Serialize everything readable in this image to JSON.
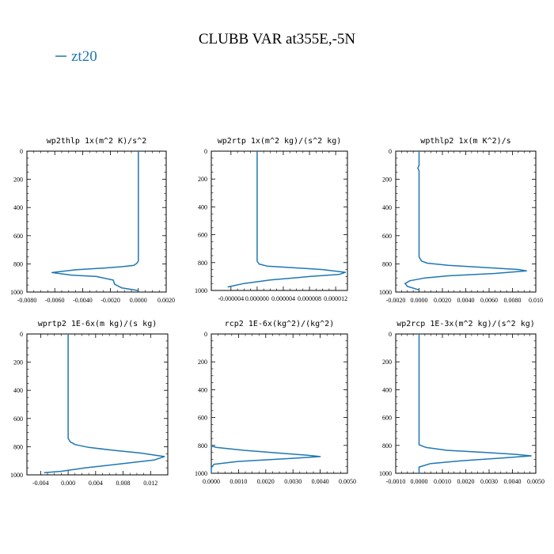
{
  "figure": {
    "title": "CLUBB VAR at355E,-5N",
    "legend": [
      {
        "name": "zt20",
        "color": "#1f77b4"
      }
    ]
  },
  "chart_data": [
    {
      "type": "line",
      "title": "wp2thlp  1x(m^2 K)/s^2",
      "xlim": [
        -0.008,
        0.002
      ],
      "ylim": [
        1000,
        0
      ],
      "xticks": [
        -0.008,
        -0.006,
        -0.004,
        -0.002,
        0.0,
        0.002
      ],
      "xtick_labels": [
        "-0.0080",
        "-0.0060",
        "-0.0040",
        "-0.0020",
        "0.0000",
        "0.0020"
      ],
      "yticks": [
        0,
        200,
        400,
        600,
        800,
        1000
      ],
      "ytick_labels": [
        "0",
        "200",
        "400",
        "600",
        "800",
        "1000"
      ],
      "series": [
        {
          "name": "zt20",
          "x": [
            0.0,
            0.0,
            -0.0001,
            -0.0003,
            -0.0012,
            -0.0025,
            -0.0045,
            -0.0062,
            -0.0048,
            -0.003,
            -0.0018,
            -0.0017,
            -0.0012,
            -0.0003,
            0.0
          ],
          "y": [
            0,
            780,
            795,
            810,
            820,
            830,
            842,
            862,
            880,
            890,
            915,
            945,
            970,
            985,
            990
          ]
        }
      ]
    },
    {
      "type": "line",
      "title": "wp2rtp  1x(m^2 kg)/(s^2 kg)",
      "xlim": [
        -7e-06,
        1.38e-05
      ],
      "ylim": [
        1000,
        0
      ],
      "xticks": [
        -4e-06,
        0.0,
        4e-06,
        8e-06,
        1.2e-05
      ],
      "xtick_labels": [
        "-0.000004",
        "0.000000",
        "0.000004",
        "0.000008",
        "0.000012"
      ],
      "yticks": [
        0,
        200,
        400,
        600,
        800,
        1000
      ],
      "ytick_labels": [
        "0",
        "200",
        "400",
        "600",
        "800",
        "1000"
      ],
      "series": [
        {
          "name": "zt20",
          "x": [
            0.0,
            0.0,
            3e-07,
            1.5e-06,
            5e-06,
            1e-05,
            1.35e-05,
            1.25e-05,
            8e-06,
            2e-06,
            -2e-06,
            -4.5e-06
          ],
          "y": [
            0,
            790,
            810,
            825,
            835,
            850,
            870,
            885,
            900,
            925,
            950,
            975
          ]
        }
      ]
    },
    {
      "type": "line",
      "title": "wpthlp2  1x(m K^2)/s",
      "xlim": [
        -0.002,
        0.01
      ],
      "ylim": [
        1000,
        0
      ],
      "xticks": [
        -0.002,
        0.0,
        0.002,
        0.004,
        0.006,
        0.008,
        0.01
      ],
      "xtick_labels": [
        "-0.0020",
        "0.0000",
        "0.0020",
        "0.0040",
        "0.0060",
        "0.0080",
        "0.010"
      ],
      "yticks": [
        0,
        200,
        400,
        600,
        800,
        1000
      ],
      "ytick_labels": [
        "0",
        "200",
        "400",
        "600",
        "800",
        "1000"
      ],
      "series": [
        {
          "name": "zt20",
          "x": [
            0.0,
            0.0,
            -0.0001,
            0.0,
            0.0,
            0.0002,
            0.0007,
            0.0025,
            0.0055,
            0.0085,
            0.0092,
            0.0065,
            0.0025,
            0.0005,
            -0.0008,
            -0.0012,
            -0.001,
            0.0
          ],
          "y": [
            0,
            100,
            120,
            140,
            750,
            780,
            795,
            810,
            825,
            840,
            850,
            868,
            885,
            900,
            920,
            940,
            960,
            985
          ]
        }
      ]
    },
    {
      "type": "line",
      "title": "wprtp2  1E-6x(m kg)/(s kg)",
      "xlim": [
        -0.006,
        0.0145
      ],
      "ylim": [
        1000,
        0
      ],
      "xticks": [
        -0.004,
        0.0,
        0.004,
        0.008,
        0.012
      ],
      "xtick_labels": [
        "-0.004",
        "0.000",
        "0.004",
        "0.008",
        "0.012"
      ],
      "yticks": [
        0,
        200,
        400,
        600,
        800,
        1000
      ],
      "ytick_labels": [
        "0",
        "200",
        "400",
        "600",
        "800",
        "1000"
      ],
      "series": [
        {
          "name": "zt20",
          "x": [
            0.0,
            0.0,
            0.0003,
            0.001,
            0.003,
            0.0065,
            0.0105,
            0.014,
            0.0125,
            0.008,
            0.0025,
            -0.001,
            -0.0035
          ],
          "y": [
            0,
            740,
            765,
            785,
            805,
            825,
            845,
            870,
            895,
            920,
            950,
            975,
            985
          ]
        }
      ]
    },
    {
      "type": "line",
      "title": "rcp2  1E-6x(kg^2)/(kg^2)",
      "xlim": [
        0.0,
        0.005
      ],
      "ylim": [
        1000,
        0
      ],
      "xticks": [
        0.0,
        0.001,
        0.002,
        0.003,
        0.004,
        0.005
      ],
      "xtick_labels": [
        "0.0000",
        "0.0010",
        "0.0020",
        "0.0030",
        "0.0040",
        "0.0050"
      ],
      "yticks": [
        0,
        200,
        400,
        600,
        800,
        1000
      ],
      "ytick_labels": [
        "0",
        "200",
        "400",
        "600",
        "800",
        "1000"
      ],
      "series": [
        {
          "name": "zt20",
          "x": [
            0.0,
            0.0,
            0.0002,
            0.0012,
            0.0025,
            0.0035,
            0.004,
            0.0028,
            0.001,
            0.0001,
            0.0,
            0.0
          ],
          "y": [
            795,
            805,
            815,
            835,
            855,
            870,
            880,
            895,
            915,
            935,
            960,
            1000
          ]
        }
      ]
    },
    {
      "type": "line",
      "title": "wp2rcp  1E-3x(m^2 kg)/(s^2 kg)",
      "xlim": [
        -0.001,
        0.005
      ],
      "ylim": [
        1000,
        0
      ],
      "xticks": [
        -0.001,
        0.0,
        0.001,
        0.002,
        0.003,
        0.004,
        0.005
      ],
      "xtick_labels": [
        "-0.0010",
        "0.0000",
        "0.0010",
        "0.0020",
        "0.0030",
        "0.0040",
        "0.0050"
      ],
      "yticks": [
        0,
        200,
        400,
        600,
        800,
        1000
      ],
      "ytick_labels": [
        "0",
        "200",
        "400",
        "600",
        "800",
        "1000"
      ],
      "series": [
        {
          "name": "zt20",
          "x": [
            0.0,
            0.0,
            0.0003,
            0.0012,
            0.0028,
            0.0042,
            0.0048,
            0.0036,
            0.0018,
            0.0005,
            0.0,
            0.0
          ],
          "y": [
            0,
            795,
            815,
            835,
            850,
            865,
            875,
            890,
            910,
            930,
            955,
            1000
          ]
        }
      ]
    }
  ]
}
